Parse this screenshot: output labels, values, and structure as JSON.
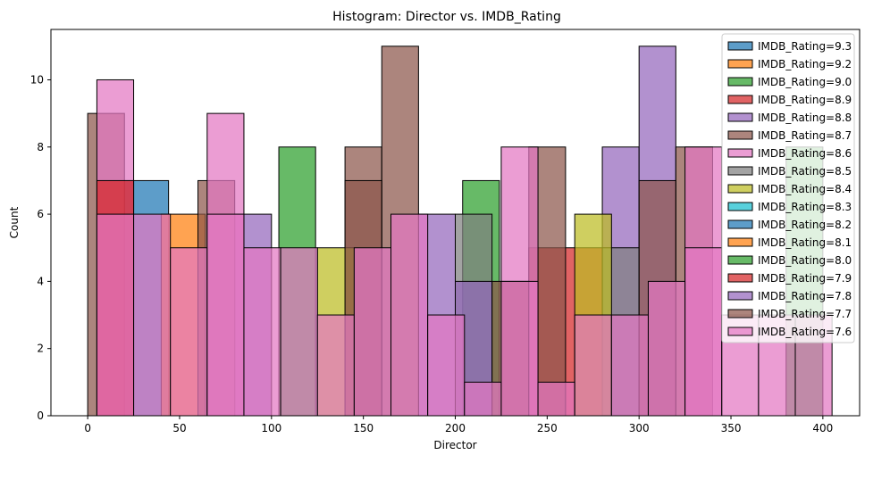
{
  "chart_data": {
    "type": "bar",
    "title": "Histogram: Director vs. IMDB_Rating",
    "xlabel": "Director",
    "ylabel": "Count",
    "xlim": [
      -20,
      420
    ],
    "ylim": [
      0,
      11.5
    ],
    "xticks": [
      0,
      50,
      100,
      150,
      200,
      250,
      300,
      350,
      400
    ],
    "yticks": [
      0,
      2,
      4,
      6,
      8,
      10
    ],
    "grid": false,
    "legend_position": "top-right",
    "series": [
      {
        "name": "IMDB_Rating=9.3",
        "color": "#1f77b4",
        "bins": [
          [
            20,
            44,
            7
          ]
        ]
      },
      {
        "name": "IMDB_Rating=9.2",
        "color": "#ff7f0e",
        "bins": [
          [
            40,
            64,
            6
          ]
        ]
      },
      {
        "name": "IMDB_Rating=9.0",
        "color": "#2ca02c",
        "bins": [
          [
            104,
            124,
            8
          ],
          [
            204,
            224,
            7
          ]
        ]
      },
      {
        "name": "IMDB_Rating=8.9",
        "color": "#d62728",
        "bins": [
          [
            240,
            280,
            5
          ]
        ]
      },
      {
        "name": "IMDB_Rating=8.8",
        "color": "#9467bd",
        "bins": [
          [
            80,
            100,
            6
          ],
          [
            180,
            200,
            6
          ],
          [
            280,
            300,
            8
          ],
          [
            300,
            320,
            11
          ]
        ]
      },
      {
        "name": "IMDB_Rating=8.7",
        "color": "#8c564b",
        "bins": [
          [
            0,
            20,
            9
          ],
          [
            60,
            80,
            7
          ],
          [
            140,
            160,
            8
          ],
          [
            160,
            180,
            11
          ],
          [
            240,
            260,
            8
          ],
          [
            320,
            340,
            8
          ]
        ]
      },
      {
        "name": "IMDB_Rating=8.6",
        "color": "#e377c2",
        "bins": [
          [
            5,
            25,
            10
          ],
          [
            65,
            85,
            9
          ],
          [
            225,
            245,
            8
          ],
          [
            325,
            345,
            8
          ]
        ]
      },
      {
        "name": "IMDB_Rating=8.5",
        "color": "#7f7f7f",
        "bins": [
          [
            200,
            220,
            6
          ],
          [
            280,
            300,
            5
          ]
        ]
      },
      {
        "name": "IMDB_Rating=8.4",
        "color": "#bcbd22",
        "bins": [
          [
            125,
            145,
            5
          ],
          [
            265,
            285,
            6
          ]
        ]
      },
      {
        "name": "IMDB_Rating=8.3",
        "color": "#17becf",
        "bins": []
      },
      {
        "name": "IMDB_Rating=8.2",
        "color": "#1f77b4",
        "bins": []
      },
      {
        "name": "IMDB_Rating=8.1",
        "color": "#ff7f0e",
        "bins": []
      },
      {
        "name": "IMDB_Rating=8.0",
        "color": "#2ca02c",
        "bins": [
          [
            380,
            400,
            8
          ]
        ]
      },
      {
        "name": "IMDB_Rating=7.9",
        "color": "#d62728",
        "bins": [
          [
            5,
            25,
            7
          ]
        ]
      },
      {
        "name": "IMDB_Rating=7.8",
        "color": "#9467bd",
        "bins": [
          [
            200,
            220,
            4
          ]
        ]
      },
      {
        "name": "IMDB_Rating=7.7",
        "color": "#8c564b",
        "bins": [
          [
            140,
            160,
            7
          ],
          [
            300,
            320,
            7
          ],
          [
            220,
            240,
            4
          ]
        ]
      },
      {
        "name": "IMDB_Rating=7.6",
        "color": "#e377c2",
        "bins": [
          [
            5,
            25,
            6
          ],
          [
            25,
            45,
            6
          ],
          [
            45,
            65,
            5
          ],
          [
            65,
            85,
            6
          ],
          [
            85,
            105,
            5
          ],
          [
            105,
            125,
            5
          ],
          [
            125,
            145,
            3
          ],
          [
            145,
            165,
            5
          ],
          [
            165,
            185,
            6
          ],
          [
            185,
            205,
            3
          ],
          [
            205,
            225,
            1
          ],
          [
            225,
            245,
            4
          ],
          [
            245,
            265,
            1
          ],
          [
            265,
            285,
            3
          ],
          [
            285,
            305,
            3
          ],
          [
            305,
            325,
            4
          ],
          [
            325,
            345,
            5
          ],
          [
            345,
            365,
            3
          ],
          [
            365,
            385,
            3
          ],
          [
            385,
            405,
            3
          ]
        ]
      }
    ]
  }
}
